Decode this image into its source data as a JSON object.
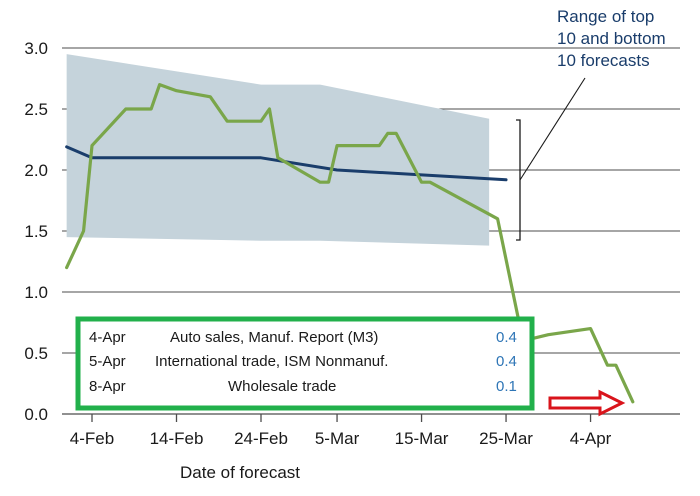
{
  "chart_data": {
    "type": "line",
    "xlabel": "Date of forecast",
    "ylabel": "",
    "ylim": [
      0,
      3.0
    ],
    "y_ticks": [
      "0.0",
      "0.5",
      "1.0",
      "1.5",
      "2.0",
      "2.5",
      "3.0"
    ],
    "x_ticks": [
      "4-Feb",
      "14-Feb",
      "24-Feb",
      "5-Mar",
      "15-Mar",
      "25-Mar",
      "4-Apr"
    ],
    "grid": "horizontal",
    "band": {
      "label": "Range of top 10 and bottom 10 forecasts",
      "x": [
        "1-Feb",
        "24-Feb",
        "3-Mar",
        "23-Mar"
      ],
      "upper": [
        2.95,
        2.7,
        2.7,
        2.42
      ],
      "lower": [
        1.45,
        1.42,
        1.42,
        1.38
      ]
    },
    "series": [
      {
        "color": "#1a3d6b",
        "x": [
          "1-Feb",
          "4-Feb",
          "24-Feb",
          "5-Mar",
          "15-Mar",
          "25-Mar"
        ],
        "values": [
          2.19,
          2.1,
          2.1,
          2.0,
          1.96,
          1.92
        ]
      },
      {
        "color": "#7aa64a",
        "x": [
          "1-Feb",
          "3-Feb",
          "4-Feb",
          "8-Feb",
          "11-Feb",
          "12-Feb",
          "14-Feb",
          "18-Feb",
          "20-Feb",
          "22-Feb",
          "24-Feb",
          "25-Feb",
          "26-Feb",
          "3-Mar",
          "4-Mar",
          "5-Mar",
          "6-Mar",
          "10-Mar",
          "11-Mar",
          "12-Mar",
          "15-Mar",
          "16-Mar",
          "24-Mar",
          "27-Mar",
          "30-Mar",
          "4-Apr",
          "6-Apr",
          "7-Apr",
          "9-Apr"
        ],
        "values": [
          1.2,
          1.5,
          2.2,
          2.5,
          2.5,
          2.7,
          2.65,
          2.6,
          2.4,
          2.4,
          2.4,
          2.5,
          2.1,
          1.9,
          1.9,
          2.2,
          2.2,
          2.2,
          2.3,
          2.3,
          1.9,
          1.9,
          1.6,
          0.6,
          0.65,
          0.7,
          0.4,
          0.4,
          0.1
        ]
      }
    ],
    "annotation": {
      "line1": "Range of top",
      "line2": "10 and bottom",
      "line3": "10 forecasts"
    },
    "table": {
      "border_color": "#22b04b",
      "rows": [
        {
          "date": "4-Apr",
          "event": "Auto sales, Manuf. Report (M3)",
          "value": "0.4"
        },
        {
          "date": "5-Apr",
          "event": "International trade, ISM Nonmanuf.",
          "value": "0.4"
        },
        {
          "date": "8-Apr",
          "event": "Wholesale trade",
          "value": "0.1"
        }
      ]
    },
    "arrow": {
      "color": "#d9141b",
      "direction": "right"
    },
    "colors": {
      "band": "#c5d3db",
      "grid": "#4d4d4d"
    }
  }
}
